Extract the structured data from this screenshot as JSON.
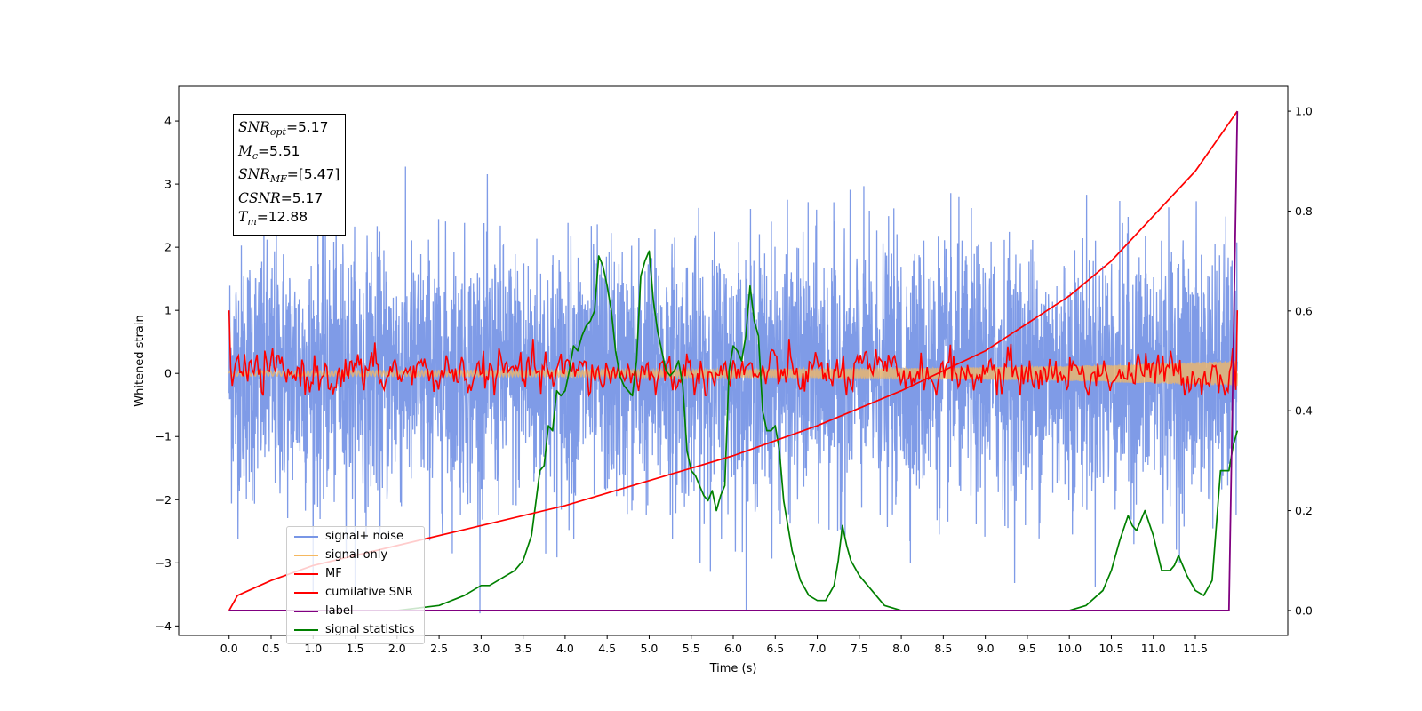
{
  "chart_data": {
    "type": "line",
    "title": "",
    "xlabel": "Time (s)",
    "ylabel": "Whitened strain",
    "ylabel_right": "",
    "xlim": [
      -0.6,
      12.6
    ],
    "ylim": [
      -4.15,
      4.55
    ],
    "ylim_right": [
      -0.05,
      1.05
    ],
    "x_ticks": [
      "0.0",
      "0.5",
      "1.0",
      "1.5",
      "2.0",
      "2.5",
      "3.0",
      "3.5",
      "4.0",
      "4.5",
      "5.0",
      "5.5",
      "6.0",
      "6.5",
      "7.0",
      "7.5",
      "8.0",
      "8.5",
      "9.0",
      "9.5",
      "10.0",
      "10.5",
      "11.0",
      "11.5"
    ],
    "y_ticks": [
      "−4",
      "−3",
      "−2",
      "−1",
      "0",
      "1",
      "2",
      "3",
      "4"
    ],
    "y_ticks_right": [
      "0.0",
      "0.2",
      "0.4",
      "0.6",
      "0.8",
      "1.0"
    ],
    "grid": false,
    "legend_position": "lower-left",
    "annotation": {
      "snr_opt": "=5.17",
      "mc": "=5.51",
      "snr_mf": "=[5.47]",
      "csnr": "=5.17",
      "tm": "=12.88"
    },
    "series": [
      {
        "name": "signal+ noise",
        "color": "#7896e6",
        "axis": "left",
        "kind": "noise",
        "x_range": [
          0.0,
          12.0
        ],
        "amplitude_std": 1.0
      },
      {
        "name": "signal only",
        "color": "#f5b860",
        "axis": "left",
        "kind": "chirp",
        "x_range": [
          0.0,
          12.0
        ],
        "envelope": [
          [
            0.0,
            0.04
          ],
          [
            4.0,
            0.05
          ],
          [
            8.0,
            0.08
          ],
          [
            10.0,
            0.12
          ],
          [
            12.0,
            0.2
          ]
        ]
      },
      {
        "name": "MF",
        "color": "#ff0000",
        "axis": "left",
        "kind": "filter",
        "x_range": [
          0.0,
          12.0
        ],
        "x": [
          0.0,
          0.02,
          12.0
        ],
        "y": [
          1.0,
          -0.1,
          1.0
        ]
      },
      {
        "name": "cumilative SNR",
        "color": "#ff0000",
        "axis": "right",
        "x": [
          0.0,
          0.1,
          0.5,
          1.0,
          1.5,
          2.0,
          3.0,
          4.0,
          5.0,
          6.0,
          7.0,
          8.0,
          9.0,
          10.0,
          10.5,
          11.0,
          11.5,
          12.0
        ],
        "y": [
          0.0,
          0.03,
          0.06,
          0.09,
          0.11,
          0.13,
          0.17,
          0.21,
          0.26,
          0.31,
          0.37,
          0.44,
          0.52,
          0.63,
          0.7,
          0.79,
          0.88,
          1.0
        ]
      },
      {
        "name": "label",
        "color": "#800080",
        "axis": "right",
        "x": [
          0.0,
          11.9,
          12.0
        ],
        "y": [
          0.0,
          0.0,
          1.0
        ]
      },
      {
        "name": "signal statistics",
        "color": "#008000",
        "axis": "right",
        "x": [
          0.0,
          0.5,
          1.0,
          1.5,
          2.0,
          2.5,
          2.8,
          3.0,
          3.1,
          3.2,
          3.3,
          3.4,
          3.5,
          3.6,
          3.7,
          3.75,
          3.8,
          3.85,
          3.9,
          3.95,
          4.0,
          4.05,
          4.1,
          4.15,
          4.2,
          4.25,
          4.3,
          4.35,
          4.4,
          4.45,
          4.5,
          4.55,
          4.6,
          4.65,
          4.7,
          4.75,
          4.8,
          4.85,
          4.9,
          4.95,
          5.0,
          5.05,
          5.1,
          5.15,
          5.2,
          5.25,
          5.3,
          5.35,
          5.4,
          5.45,
          5.5,
          5.55,
          5.6,
          5.65,
          5.7,
          5.75,
          5.8,
          5.85,
          5.9,
          5.95,
          6.0,
          6.05,
          6.1,
          6.15,
          6.2,
          6.25,
          6.3,
          6.35,
          6.4,
          6.45,
          6.5,
          6.55,
          6.6,
          6.7,
          6.8,
          6.9,
          7.0,
          7.1,
          7.2,
          7.25,
          7.3,
          7.35,
          7.4,
          7.5,
          7.6,
          7.7,
          7.8,
          8.0,
          8.5,
          9.0,
          9.5,
          10.0,
          10.2,
          10.4,
          10.5,
          10.6,
          10.7,
          10.75,
          10.8,
          10.85,
          10.9,
          11.0,
          11.1,
          11.2,
          11.25,
          11.3,
          11.4,
          11.5,
          11.6,
          11.7,
          11.8,
          11.9,
          11.95,
          12.0
        ],
        "y": [
          0.0,
          0.0,
          0.0,
          0.0,
          0.0,
          0.01,
          0.03,
          0.05,
          0.05,
          0.06,
          0.07,
          0.08,
          0.1,
          0.15,
          0.28,
          0.29,
          0.37,
          0.36,
          0.44,
          0.43,
          0.44,
          0.48,
          0.53,
          0.52,
          0.55,
          0.57,
          0.58,
          0.6,
          0.71,
          0.69,
          0.65,
          0.6,
          0.52,
          0.47,
          0.45,
          0.44,
          0.43,
          0.5,
          0.67,
          0.7,
          0.72,
          0.62,
          0.56,
          0.52,
          0.48,
          0.47,
          0.48,
          0.5,
          0.45,
          0.32,
          0.28,
          0.27,
          0.25,
          0.23,
          0.22,
          0.24,
          0.2,
          0.23,
          0.25,
          0.48,
          0.53,
          0.52,
          0.5,
          0.55,
          0.65,
          0.58,
          0.55,
          0.4,
          0.36,
          0.36,
          0.37,
          0.32,
          0.22,
          0.12,
          0.06,
          0.03,
          0.02,
          0.02,
          0.05,
          0.1,
          0.17,
          0.13,
          0.1,
          0.07,
          0.05,
          0.03,
          0.01,
          0.0,
          0.0,
          0.0,
          0.0,
          0.0,
          0.01,
          0.04,
          0.08,
          0.14,
          0.19,
          0.17,
          0.16,
          0.18,
          0.2,
          0.15,
          0.08,
          0.08,
          0.09,
          0.11,
          0.07,
          0.04,
          0.03,
          0.06,
          0.28,
          0.28,
          0.33,
          0.36
        ]
      }
    ]
  }
}
